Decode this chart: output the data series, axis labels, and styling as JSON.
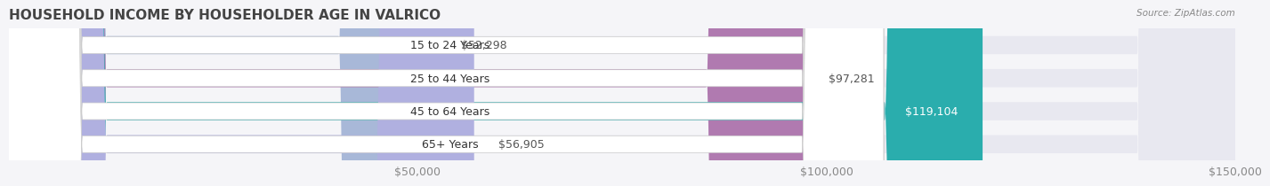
{
  "title": "HOUSEHOLD INCOME BY HOUSEHOLDER AGE IN VALRICO",
  "source": "Source: ZipAtlas.com",
  "categories": [
    "15 to 24 Years",
    "25 to 44 Years",
    "45 to 64 Years",
    "65+ Years"
  ],
  "values": [
    52298,
    97281,
    119104,
    56905
  ],
  "labels": [
    "$52,298",
    "$97,281",
    "$119,104",
    "$56,905"
  ],
  "bar_colors": [
    "#a8b8d8",
    "#b07ab0",
    "#2aadad",
    "#b0b0e0"
  ],
  "bar_bg_color": "#e8e8f0",
  "label_bg_color": "#ffffff",
  "xlim": [
    0,
    150000
  ],
  "xticks": [
    50000,
    100000,
    150000
  ],
  "xticklabels": [
    "$50,000",
    "$100,000",
    "$150,000"
  ],
  "title_fontsize": 11,
  "tick_fontsize": 9,
  "bar_label_fontsize": 9,
  "category_fontsize": 9,
  "background_color": "#f5f5f8"
}
